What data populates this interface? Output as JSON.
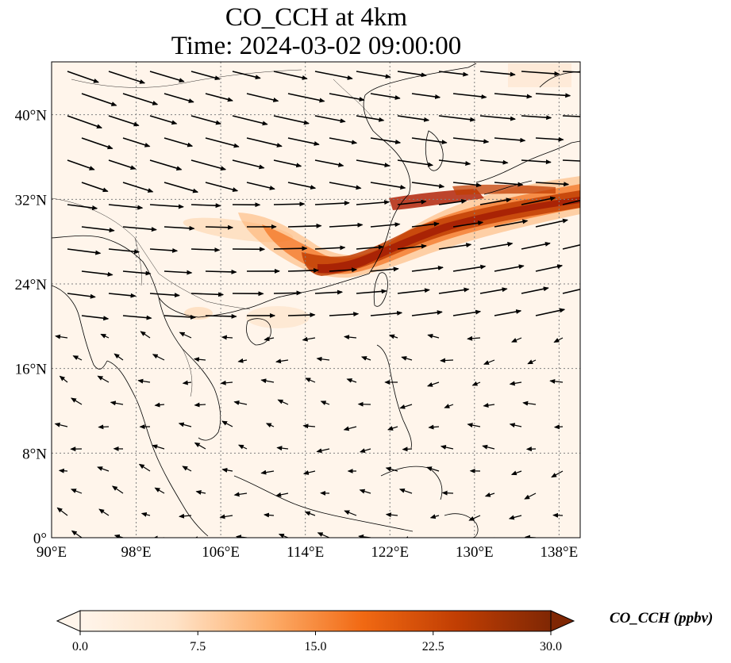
{
  "title": {
    "line1": "CO_CCH at 4km",
    "line2": "Time: 2024-03-02 09:00:00"
  },
  "map": {
    "lon_range": [
      90,
      140
    ],
    "lat_range": [
      0,
      45
    ],
    "x_ticks": [
      {
        "value": 90,
        "label": "90°E"
      },
      {
        "value": 98,
        "label": "98°E"
      },
      {
        "value": 106,
        "label": "106°E"
      },
      {
        "value": 114,
        "label": "114°E"
      },
      {
        "value": 122,
        "label": "122°E"
      },
      {
        "value": 130,
        "label": "130°E"
      },
      {
        "value": 138,
        "label": "138°E"
      }
    ],
    "y_ticks": [
      {
        "value": 0,
        "label": "0°"
      },
      {
        "value": 8,
        "label": "8°N"
      },
      {
        "value": 16,
        "label": "16°N"
      },
      {
        "value": 24,
        "label": "24°N"
      },
      {
        "value": 32,
        "label": "32°N"
      },
      {
        "value": 40,
        "label": "40°N"
      }
    ],
    "gridlines": true,
    "plume_color": "#b71c0c",
    "background_color": "#fff5eb"
  },
  "colorbar": {
    "label": "CO_CCH (ppbv)",
    "vmin": 0.0,
    "vmax": 30.0,
    "ticks": [
      "0.0",
      "7.5",
      "15.0",
      "22.5",
      "30.0"
    ],
    "colors": [
      "#fff5eb",
      "#fdd9b4",
      "#fda762",
      "#f3701b",
      "#c54102",
      "#7f2704"
    ]
  }
}
